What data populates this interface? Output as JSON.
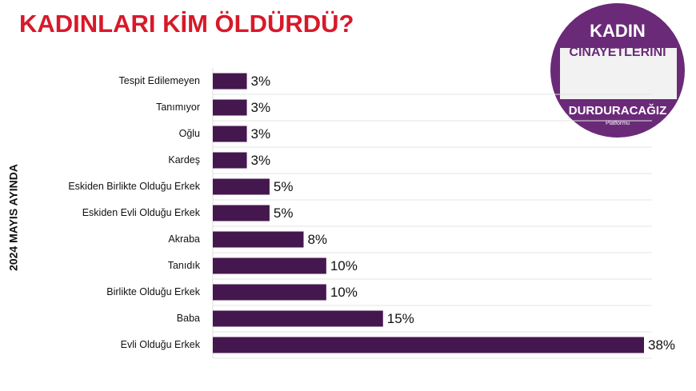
{
  "chart_data": {
    "type": "hbar",
    "title": "KADINLARI KİM ÖLDÜRDÜ?",
    "y_axis_label": "2024 MAYIS AYINDA",
    "categories": [
      "Tespit Edilemeyen",
      "Tanımıyor",
      "Oğlu",
      "Kardeş",
      "Eskiden Birlikte Olduğu Erkek",
      "Eskiden Evli Olduğu Erkek",
      "Akraba",
      "Tanıdık",
      "Birlikte Olduğu Erkek",
      "Baba",
      "Evli Olduğu Erkek"
    ],
    "values": [
      3,
      3,
      3,
      3,
      5,
      5,
      8,
      10,
      10,
      15,
      38
    ],
    "value_labels": [
      "3%",
      "3%",
      "3%",
      "3%",
      "5%",
      "5%",
      "8%",
      "10%",
      "10%",
      "15%",
      "38%"
    ],
    "color": "#45174f"
  },
  "logo": {
    "line1": "KADIN",
    "line2": "CİNAYETLERİNİ",
    "line3": "DURDURACAĞIZ",
    "line4": "Platformu"
  }
}
